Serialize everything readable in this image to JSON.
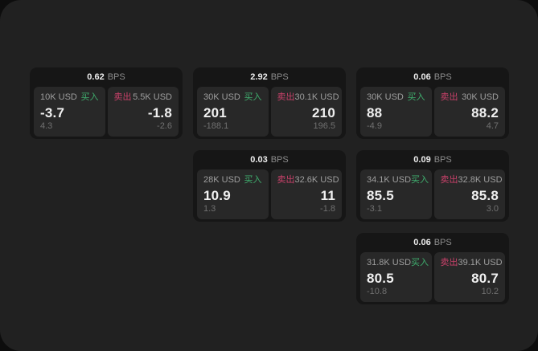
{
  "labels": {
    "buy": "买入",
    "sell": "卖出",
    "bps_unit": "BPS"
  },
  "colors": {
    "buy_accent": "#3fae6e",
    "sell_accent": "#c9416a",
    "surface_bg": "#212121",
    "card_bg": "#161616",
    "panel_bg": "#282828"
  },
  "cards": [
    {
      "bps": "0.62",
      "buy": {
        "amount": "10K USD",
        "value": "-3.7",
        "delta": "4.3"
      },
      "sell": {
        "amount": "5.5K USD",
        "value": "-1.8",
        "delta": "-2.6"
      }
    },
    {
      "bps": "2.92",
      "buy": {
        "amount": "30K USD",
        "value": "201",
        "delta": "-188.1"
      },
      "sell": {
        "amount": "30.1K USD",
        "value": "210",
        "delta": "196.5"
      }
    },
    {
      "bps": "0.06",
      "buy": {
        "amount": "30K USD",
        "value": "88",
        "delta": "-4.9"
      },
      "sell": {
        "amount": "30K USD",
        "value": "88.2",
        "delta": "4.7"
      }
    },
    {
      "bps": "0.03",
      "buy": {
        "amount": "28K USD",
        "value": "10.9",
        "delta": "1.3"
      },
      "sell": {
        "amount": "32.6K USD",
        "value": "11",
        "delta": "-1.8"
      }
    },
    {
      "bps": "0.09",
      "buy": {
        "amount": "34.1K USD",
        "value": "85.5",
        "delta": "-3.1"
      },
      "sell": {
        "amount": "32.8K USD",
        "value": "85.8",
        "delta": "3.0"
      }
    },
    {
      "bps": "0.06",
      "buy": {
        "amount": "31.8K USD",
        "value": "80.5",
        "delta": "-10.8"
      },
      "sell": {
        "amount": "39.1K USD",
        "value": "80.7",
        "delta": "10.2"
      }
    }
  ]
}
